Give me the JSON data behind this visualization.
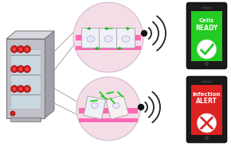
{
  "bg_color": "#ffffff",
  "circle_face": "#f5dde8",
  "circle_edge": "#ccbbcc",
  "pink_strip": "#ff69b4",
  "cell_face": "#f0f0f8",
  "cell_edge": "#aaaaaa",
  "nucleus_face": "#e8e8f8",
  "nucleus_edge": "#aaaacc",
  "arrow_green": "#00bb00",
  "bacteria_green": "#22cc22",
  "signal_color": "#222222",
  "dot_color": "#111111",
  "phone1_body": "#1a1a1a",
  "phone1_screen": "#22cc22",
  "phone2_body": "#1a1a1a",
  "phone2_screen": "#dd2222",
  "phone1_text1": "Cells",
  "phone1_text2": "READY",
  "phone2_text1": "Infection",
  "phone2_text2": "ALERT",
  "inc_body": "#c0c0c8",
  "inc_side": "#a0a0a8",
  "inc_glass": "#d0e8f0",
  "inc_shelf": "#888888",
  "cell_red": "#cc2222",
  "line_color": "#999999"
}
